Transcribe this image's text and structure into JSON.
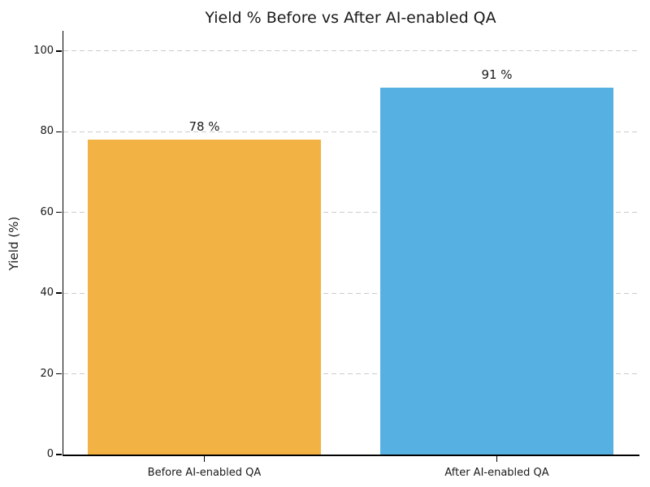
{
  "chart_data": {
    "type": "bar",
    "title": "Yield % Before vs After AI-enabled QA",
    "xlabel": "",
    "ylabel": "Yield (%)",
    "categories": [
      "Before AI-enabled QA",
      "After AI-enabled QA"
    ],
    "values": [
      78,
      91
    ],
    "value_labels": [
      "78 %",
      "91 %"
    ],
    "bar_colors": [
      "#F2B344",
      "#56B1E2"
    ],
    "ylim": [
      0,
      105
    ],
    "yticks": [
      0,
      20,
      40,
      60,
      80,
      100
    ],
    "grid": "horizontal-dashed",
    "legend_position": "none"
  },
  "colors": {
    "background": "#ffffff",
    "grid": "#cbcbcb",
    "axis": "#000000",
    "text": "#1a1a1a",
    "bar_before": "#F2B344",
    "bar_after": "#56B1E2"
  }
}
